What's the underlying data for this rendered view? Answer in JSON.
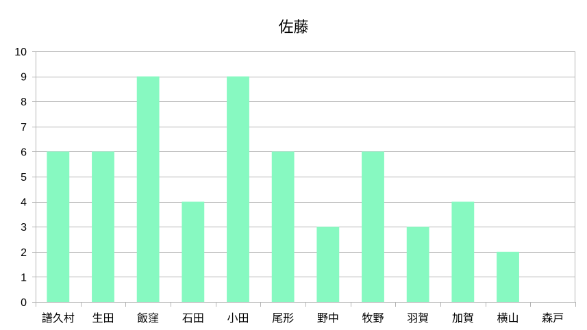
{
  "chart_data": {
    "type": "bar",
    "title": "佐藤",
    "categories": [
      "譜久村",
      "生田",
      "飯窪",
      "石田",
      "小田",
      "尾形",
      "野中",
      "牧野",
      "羽賀",
      "加賀",
      "横山",
      "森戸"
    ],
    "values": [
      6,
      6,
      9,
      4,
      9,
      6,
      3,
      6,
      3,
      4,
      2,
      0
    ],
    "ylim": [
      0,
      10
    ],
    "yticks": [
      0,
      1,
      2,
      3,
      4,
      5,
      6,
      7,
      8,
      9,
      10
    ],
    "grid": true,
    "legend": "none",
    "bar_color": "#87f9c1",
    "grid_color": "#b3b3b3"
  }
}
